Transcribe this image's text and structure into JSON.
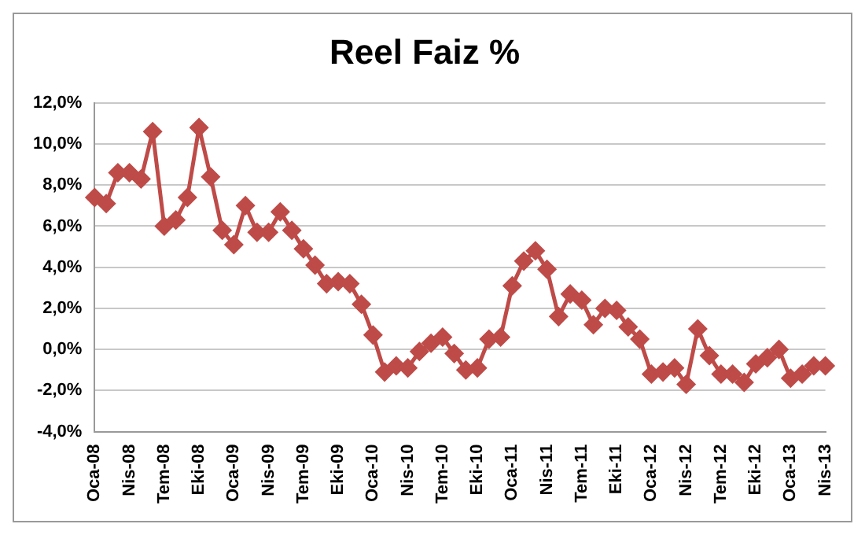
{
  "chart_data": {
    "type": "line",
    "title": "Reel Faiz %",
    "categories": [
      "Oca-08",
      null,
      null,
      "Nis-08",
      null,
      null,
      "Tem-08",
      null,
      null,
      "Eki-08",
      null,
      null,
      "Oca-09",
      null,
      null,
      "Nis-09",
      null,
      null,
      "Tem-09",
      null,
      null,
      "Eki-09",
      null,
      null,
      "Oca-10",
      null,
      null,
      "Nis-10",
      null,
      null,
      "Tem-10",
      null,
      null,
      "Eki-10",
      null,
      null,
      "Oca-11",
      null,
      null,
      "Nis-11",
      null,
      null,
      "Tem-11",
      null,
      null,
      "Eki-11",
      null,
      null,
      "Oca-12",
      null,
      null,
      "Nis-12",
      null,
      null,
      "Tem-12",
      null,
      null,
      "Eki-12",
      null,
      null,
      "Oca-13",
      null,
      null,
      "Nis-13"
    ],
    "series": [
      {
        "color": "#be4b48",
        "values": [
          7.4,
          7.1,
          8.6,
          8.6,
          8.3,
          10.6,
          6.0,
          6.3,
          7.4,
          10.8,
          8.4,
          5.8,
          5.1,
          7.0,
          5.7,
          5.7,
          6.7,
          5.8,
          4.9,
          4.1,
          3.2,
          3.3,
          3.2,
          2.2,
          0.7,
          -1.1,
          -0.8,
          -0.9,
          -0.1,
          0.3,
          0.6,
          -0.2,
          -1.0,
          -0.9,
          0.5,
          0.6,
          3.1,
          4.3,
          4.8,
          3.9,
          1.6,
          2.7,
          2.4,
          1.2,
          2.0,
          1.9,
          1.1,
          0.5,
          -1.2,
          -1.1,
          -0.9,
          -1.7,
          1.0,
          -0.3,
          -1.2,
          -1.2,
          -1.6,
          -0.7,
          -0.4,
          0.0,
          -1.4,
          -1.2,
          -0.8,
          -0.8
        ]
      }
    ],
    "ylim": [
      -4,
      12
    ],
    "yticks": [
      {
        "value": -4,
        "label": "-4,0%"
      },
      {
        "value": -2,
        "label": "-2,0%"
      },
      {
        "value": 0,
        "label": "0,0%"
      },
      {
        "value": 2,
        "label": "2,0%"
      },
      {
        "value": 4,
        "label": "4,0%"
      },
      {
        "value": 6,
        "label": "6,0%"
      },
      {
        "value": 8,
        "label": "8,0%"
      },
      {
        "value": 10,
        "label": "10,0%"
      },
      {
        "value": 12,
        "label": "12,0%"
      }
    ],
    "grid": "y",
    "marker": "diamond",
    "line_style": "solid",
    "legend": false
  }
}
